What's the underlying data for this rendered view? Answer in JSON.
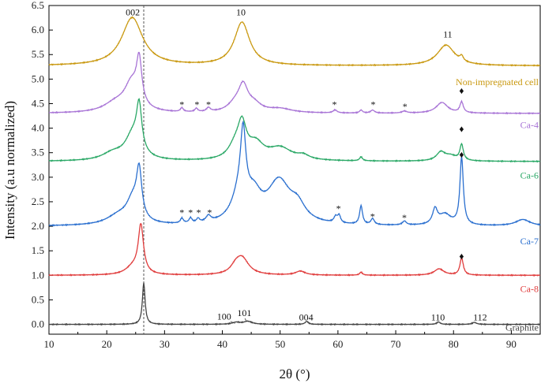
{
  "chart_data": {
    "type": "line",
    "title": "",
    "xlabel": "2θ (°)",
    "ylabel": "Intensity (a.u normalized)",
    "xlim": [
      10,
      95
    ],
    "ylim": [
      -0.2,
      6.5
    ],
    "x_ticks": [
      "10",
      "20",
      "30",
      "40",
      "50",
      "60",
      "70",
      "80",
      "90"
    ],
    "x_tick_values": [
      10,
      20,
      30,
      40,
      50,
      60,
      70,
      80,
      90
    ],
    "y_ticks": [
      "0.0",
      "0.5",
      "1.0",
      "1.5",
      "2.0",
      "2.5",
      "3.0",
      "3.5",
      "4.0",
      "4.5",
      "5.0",
      "5.5",
      "6.0",
      "6.5"
    ],
    "y_tick_values": [
      0,
      0.5,
      1,
      1.5,
      2,
      2.5,
      3,
      3.5,
      4,
      4.5,
      5,
      5.5,
      6,
      6.5
    ],
    "reference_line_x": 26.4,
    "series": [
      {
        "name": "Graphite",
        "color": "#444444",
        "baseline": 0.0,
        "label_x": 95,
        "label_y": -0.13,
        "peaks": [
          [
            26.4,
            0.85,
            0.28
          ],
          [
            42.4,
            0.04,
            0.8
          ],
          [
            44.4,
            0.06,
            0.9
          ],
          [
            54.6,
            0.06,
            0.35
          ],
          [
            77.4,
            0.05,
            0.35
          ],
          [
            83.6,
            0.04,
            0.45
          ]
        ]
      },
      {
        "name": "Ca-8",
        "color": "#e03c3c",
        "baseline": 1.0,
        "label_x": 95,
        "label_y": 0.66,
        "peaks": [
          [
            25.9,
            0.98,
            0.55
          ],
          [
            24.5,
            0.15,
            1.5
          ],
          [
            43.4,
            0.34,
            1.4
          ],
          [
            42.3,
            0.12,
            1.0
          ],
          [
            53.5,
            0.08,
            1.0
          ],
          [
            64.0,
            0.06,
            0.3
          ],
          [
            77.5,
            0.13,
            1.0
          ],
          [
            81.4,
            0.35,
            0.35
          ]
        ]
      },
      {
        "name": "Ca-7",
        "color": "#2a6fcf",
        "baseline": 2.0,
        "label_x": 95,
        "label_y": 1.63,
        "peaks": [
          [
            25.6,
            0.95,
            0.55
          ],
          [
            24.5,
            0.45,
            1.3
          ],
          [
            22.0,
            0.18,
            2.5
          ],
          [
            33.0,
            0.1,
            0.3
          ],
          [
            34.5,
            0.1,
            0.3
          ],
          [
            35.8,
            0.08,
            0.3
          ],
          [
            37.6,
            0.12,
            0.5
          ],
          [
            43.6,
            1.35,
            0.55
          ],
          [
            43.0,
            0.55,
            1.6
          ],
          [
            45.5,
            0.45,
            1.5
          ],
          [
            49.8,
            0.85,
            2.4
          ],
          [
            53.0,
            0.3,
            1.6
          ],
          [
            59.6,
            0.12,
            0.35
          ],
          [
            60.2,
            0.15,
            0.3
          ],
          [
            64.0,
            0.38,
            0.3
          ],
          [
            66.0,
            0.12,
            0.35
          ],
          [
            71.5,
            0.08,
            0.4
          ],
          [
            76.8,
            0.3,
            0.5
          ],
          [
            78.5,
            0.22,
            1.3
          ],
          [
            81.4,
            1.38,
            0.35
          ],
          [
            92.0,
            0.13,
            1.5
          ]
        ]
      },
      {
        "name": "Ca-6",
        "color": "#2aa866",
        "baseline": 3.32,
        "label_x": 95,
        "label_y": 2.97,
        "peaks": [
          [
            25.6,
            0.9,
            0.55
          ],
          [
            24.5,
            0.5,
            1.6
          ],
          [
            21.0,
            0.14,
            2.2
          ],
          [
            43.4,
            0.65,
            0.9
          ],
          [
            42.2,
            0.25,
            1.4
          ],
          [
            45.8,
            0.3,
            1.6
          ],
          [
            50.0,
            0.25,
            2.5
          ],
          [
            54.0,
            0.08,
            1.2
          ],
          [
            64.0,
            0.08,
            0.3
          ],
          [
            77.8,
            0.17,
            0.9
          ],
          [
            79.5,
            0.1,
            1.3
          ],
          [
            81.4,
            0.32,
            0.35
          ]
        ]
      },
      {
        "name": "Ca-4",
        "color": "#a874d6",
        "baseline": 4.3,
        "label_x": 95,
        "label_y": 4.0,
        "peaks": [
          [
            25.6,
            0.88,
            0.55
          ],
          [
            24.3,
            0.55,
            1.5
          ],
          [
            21.5,
            0.18,
            2.5
          ],
          [
            33.0,
            0.08,
            0.3
          ],
          [
            35.5,
            0.07,
            0.3
          ],
          [
            37.6,
            0.08,
            0.4
          ],
          [
            43.6,
            0.5,
            1.0
          ],
          [
            42.2,
            0.15,
            1.5
          ],
          [
            45.5,
            0.15,
            1.5
          ],
          [
            50.0,
            0.08,
            2.5
          ],
          [
            59.5,
            0.06,
            0.4
          ],
          [
            64.0,
            0.06,
            0.3
          ],
          [
            66.0,
            0.06,
            0.4
          ],
          [
            71.5,
            0.04,
            0.5
          ],
          [
            78.0,
            0.22,
            1.2
          ],
          [
            81.4,
            0.22,
            0.35
          ]
        ]
      },
      {
        "name": "Non-impregnated cell",
        "color": "#c9980f",
        "baseline": 5.27,
        "label_x": 95,
        "label_y": 4.88,
        "peaks": [
          [
            24.4,
            0.98,
            2.2
          ],
          [
            43.4,
            0.88,
            1.6
          ],
          [
            78.7,
            0.42,
            1.8
          ],
          [
            81.4,
            0.1,
            0.35
          ]
        ]
      }
    ],
    "annotations": [
      {
        "text": "002",
        "x": 24.5,
        "y": 6.3
      },
      {
        "text": "10",
        "x": 43.2,
        "y": 6.3
      },
      {
        "text": "11",
        "x": 79.0,
        "y": 5.85
      },
      {
        "text": "100",
        "x": 40.3,
        "y": 0.1
      },
      {
        "text": "101",
        "x": 43.8,
        "y": 0.17
      },
      {
        "text": "004",
        "x": 54.5,
        "y": 0.08
      },
      {
        "text": "110",
        "x": 77.3,
        "y": 0.08
      },
      {
        "text": "112",
        "x": 84.6,
        "y": 0.08
      }
    ],
    "asterisks": [
      {
        "text": "*",
        "x": 33.0,
        "y": 4.42
      },
      {
        "text": "*",
        "x": 35.6,
        "y": 4.42
      },
      {
        "text": "*",
        "x": 37.6,
        "y": 4.42
      },
      {
        "text": "*",
        "x": 59.4,
        "y": 4.42
      },
      {
        "text": "*",
        "x": 66.1,
        "y": 4.42
      },
      {
        "text": "*",
        "x": 71.6,
        "y": 4.38
      },
      {
        "text": "*",
        "x": 33.0,
        "y": 2.22
      },
      {
        "text": "*",
        "x": 34.5,
        "y": 2.22
      },
      {
        "text": "*",
        "x": 35.9,
        "y": 2.22
      },
      {
        "text": "*",
        "x": 37.8,
        "y": 2.22
      },
      {
        "text": "*",
        "x": 60.1,
        "y": 2.3
      },
      {
        "text": "*",
        "x": 66.0,
        "y": 2.14
      },
      {
        "text": "*",
        "x": 71.5,
        "y": 2.11
      }
    ],
    "diamonds": [
      {
        "text": "♦",
        "x": 81.4,
        "y": 4.7
      },
      {
        "text": "♦",
        "x": 81.4,
        "y": 3.92
      },
      {
        "text": "♦",
        "x": 81.4,
        "y": 3.4
      },
      {
        "text": "♦",
        "x": 81.4,
        "y": 1.33
      }
    ]
  }
}
